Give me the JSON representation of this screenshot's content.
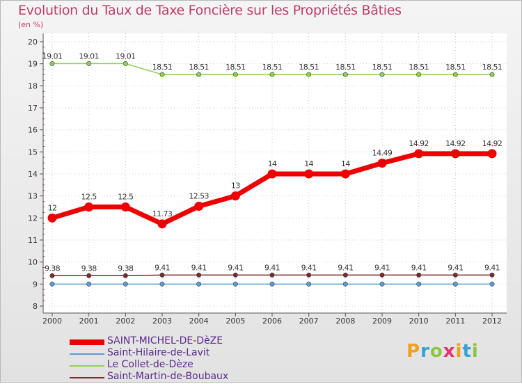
{
  "title": "Evolution du Taux de Taxe Foncière sur les Propriétés Bâties",
  "subtitle": "(en %)",
  "brand": [
    "P",
    "r",
    "o",
    "x",
    "i",
    "t",
    "i"
  ],
  "brand_colors": [
    "#f2a019",
    "#3aa0d8",
    "#8cc63f",
    "#e5336f",
    "#f2a019",
    "#3aa0d8",
    "#8cc63f"
  ],
  "chart_data": {
    "type": "line",
    "title": "Evolution du Taux de Taxe Foncière sur les Propriétés Bâties",
    "ylabel": "(en %)",
    "xlabel": "",
    "ylim": [
      8,
      20
    ],
    "yticks": [
      "8",
      "9",
      "10",
      "11",
      "12",
      "13",
      "14",
      "15",
      "16",
      "17",
      "18",
      "19",
      "20"
    ],
    "categories": [
      "2000",
      "2001",
      "2002",
      "2003",
      "2004",
      "2005",
      "2006",
      "2007",
      "2008",
      "2009",
      "2010",
      "2011",
      "2012"
    ],
    "series": [
      {
        "name": "SAINT-MICHEL-DE-DèZE",
        "color": "#ee0000",
        "values": [
          12,
          12.5,
          12.5,
          11.73,
          12.53,
          13,
          14,
          14,
          14,
          14.49,
          14.92,
          14.92,
          14.92
        ],
        "labels": [
          "12",
          "12.5",
          "12.5",
          "11.73",
          "12.53",
          "13",
          "14",
          "14",
          "14",
          "14.49",
          "14.92",
          "14.92",
          "14.92"
        ],
        "bold": true
      },
      {
        "name": "Saint-Hilaire-de-Lavit",
        "color": "#5b9bd5",
        "values": [
          9,
          9,
          9,
          9,
          9,
          9,
          9,
          9,
          9,
          9,
          9,
          9,
          9
        ],
        "labels": []
      },
      {
        "name": "Le Collet-de-Dèze",
        "color": "#8dd150",
        "values": [
          19.01,
          19.01,
          19.01,
          18.51,
          18.51,
          18.51,
          18.51,
          18.51,
          18.51,
          18.51,
          18.51,
          18.51,
          18.51
        ],
        "labels": [
          "19.01",
          "19.01",
          "19.01",
          "18.51",
          "18.51",
          "18.51",
          "18.51",
          "18.51",
          "18.51",
          "18.51",
          "18.51",
          "18.51",
          "18.51"
        ]
      },
      {
        "name": "Saint-Martin-de-Boubaux",
        "color": "#7a2a2a",
        "values": [
          9.38,
          9.38,
          9.38,
          9.41,
          9.41,
          9.41,
          9.41,
          9.41,
          9.41,
          9.41,
          9.41,
          9.41,
          9.41
        ],
        "labels": [
          "9.38",
          "9.38",
          "9.38",
          "9.41",
          "9.41",
          "9.41",
          "9.41",
          "9.41",
          "9.41",
          "9.41",
          "9.41",
          "9.41",
          "9.41"
        ]
      }
    ]
  }
}
